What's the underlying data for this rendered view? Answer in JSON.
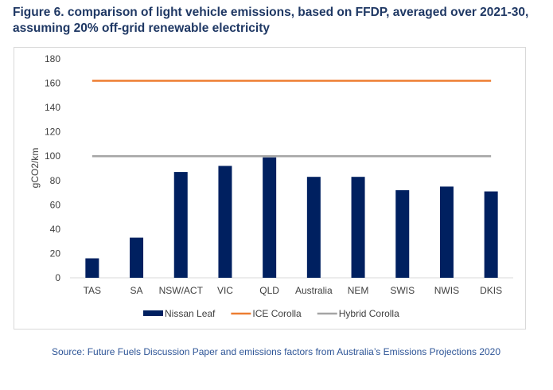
{
  "title": "Figure 6. comparison of light vehicle emissions, based on FFDP, averaged over 2021-30, assuming 20% off-grid renewable electricity",
  "source": "Source: Future Fuels Discussion Paper and emissions factors from Australia’s Emissions Projections 2020",
  "chart_data": {
    "type": "bar",
    "title": "Figure 6. comparison of light vehicle emissions, based on FFDP, averaged over 2021-30, assuming 20% off-grid renewable electricity",
    "xlabel": "",
    "ylabel": "gCO2/km",
    "ylim": [
      0,
      180
    ],
    "yticks": [
      "0",
      "20",
      "40",
      "60",
      "80",
      "100",
      "120",
      "140",
      "160",
      "180"
    ],
    "categories": [
      "TAS",
      "SA",
      "NSW/ACT",
      "VIC",
      "QLD",
      "Australia",
      "NEM",
      "SWIS",
      "NWIS",
      "DKIS"
    ],
    "series": [
      {
        "name": "Nissan Leaf",
        "type": "bar",
        "color": "#002060",
        "values": [
          16,
          33,
          87,
          92,
          99,
          83,
          83,
          72,
          75,
          71
        ]
      },
      {
        "name": "ICE Corolla",
        "type": "line",
        "color": "#ED7D31",
        "values": [
          162,
          162,
          162,
          162,
          162,
          162,
          162,
          162,
          162,
          162
        ]
      },
      {
        "name": "Hybrid Corolla",
        "type": "line",
        "color": "#A5A5A5",
        "values": [
          100,
          100,
          100,
          100,
          100,
          100,
          100,
          100,
          100,
          100
        ]
      }
    ],
    "grid": false,
    "legend": "bottom"
  }
}
